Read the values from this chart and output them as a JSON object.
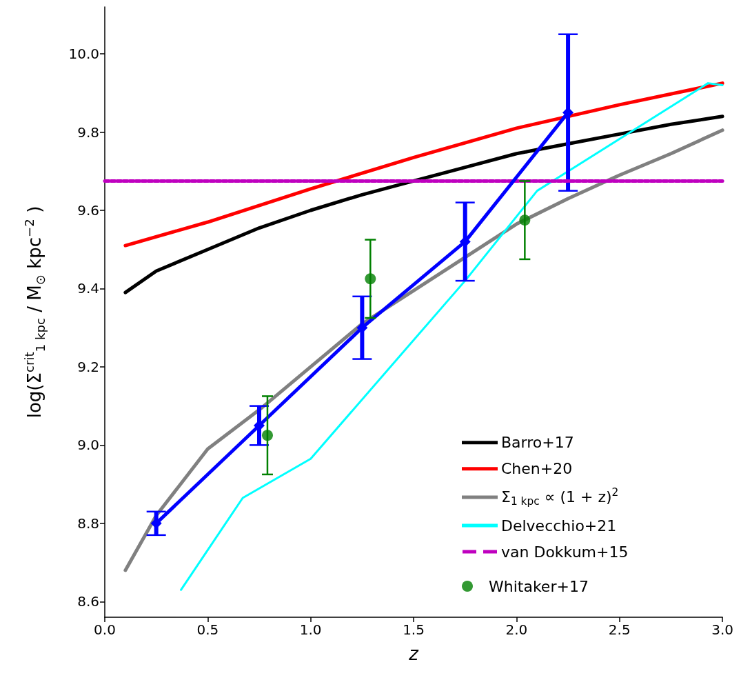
{
  "chart_data": {
    "type": "line",
    "xlabel": "z",
    "ylabel": "log(Σ$^{crit}$$_{1 kpc}$ / M$_{⊙}$ kpc$^{−2}$ )",
    "xlim": [
      0,
      3
    ],
    "xticks": [
      {
        "value": 0,
        "label": "0.0"
      },
      0.5,
      {
        "value": 1,
        "label": "1.0"
      },
      1.5,
      {
        "value": 2,
        "label": "2.0"
      },
      2.5,
      {
        "value": 3,
        "label": "3.0"
      }
    ],
    "ylim": [
      8.56,
      10.12
    ],
    "yticks": [
      8.6,
      8.8,
      {
        "value": 9,
        "label": "9.0"
      },
      9.2,
      9.4,
      9.6,
      9.8,
      {
        "value": 10,
        "label": "10.0"
      }
    ],
    "grid": false,
    "legend": "bottom right",
    "series": [
      {
        "name": "Barro+17",
        "color": "#000000",
        "marker": "none",
        "line_style": "solid",
        "x": [
          0.1,
          0.25,
          0.5,
          0.75,
          1.0,
          1.25,
          1.5,
          1.75,
          2.0,
          2.25,
          2.5,
          2.75,
          3.0
        ],
        "values": [
          9.39,
          9.445,
          9.5,
          9.555,
          9.6,
          9.64,
          9.675,
          9.71,
          9.745,
          9.77,
          9.795,
          9.82,
          9.84
        ]
      },
      {
        "name": "Chen+20",
        "color": "#ff0000",
        "marker": "none",
        "line_style": "solid",
        "x": [
          0.1,
          0.5,
          1.0,
          1.5,
          2.0,
          2.5,
          3.0
        ],
        "values": [
          9.51,
          9.57,
          9.655,
          9.735,
          9.81,
          9.87,
          9.925
        ]
      },
      {
        "name": "Σ$_{1 kpc}$ ∝ (1 + z)$^{2}$",
        "color": "#808080",
        "marker": "none",
        "line_style": "solid",
        "x": [
          0.1,
          0.25,
          0.5,
          0.75,
          1.0,
          1.25,
          1.5,
          1.75,
          2.0,
          2.25,
          2.5,
          2.75,
          3.0
        ],
        "values": [
          8.68,
          8.82,
          8.99,
          9.09,
          9.2,
          9.31,
          9.395,
          9.48,
          9.565,
          9.63,
          9.69,
          9.745,
          9.805
        ]
      },
      {
        "name": "Delvecchio+21",
        "color": "#00ffff",
        "marker": "none",
        "line_style": "solid",
        "x": [
          0.37,
          0.67,
          1.0,
          1.75,
          2.1,
          2.93,
          3.0
        ],
        "values": [
          8.63,
          8.865,
          8.965,
          9.42,
          9.65,
          9.925,
          9.92
        ]
      },
      {
        "name": "van Dokkum+15",
        "color": "#bf00bf",
        "marker": "none",
        "line_style": "dashed",
        "x": [
          0,
          3
        ],
        "values": [
          9.675,
          9.675
        ]
      },
      {
        "color": "#0000ff",
        "marker": "diamond",
        "line_style": "solid",
        "x": [
          0.25,
          0.75,
          1.25,
          1.75,
          2.25
        ],
        "values": [
          8.8,
          9.05,
          9.3,
          9.52,
          9.85
        ],
        "errors": [
          0.03,
          0.05,
          0.08,
          0.1,
          0.2
        ]
      },
      {
        "name": "Whitaker+17",
        "type": "scatter",
        "color": "#008000",
        "marker": "circle",
        "x": [
          0.79,
          1.29,
          2.04
        ],
        "values": [
          9.025,
          9.425,
          9.575
        ],
        "errors": [
          0.1,
          0.1,
          0.1
        ]
      }
    ]
  }
}
